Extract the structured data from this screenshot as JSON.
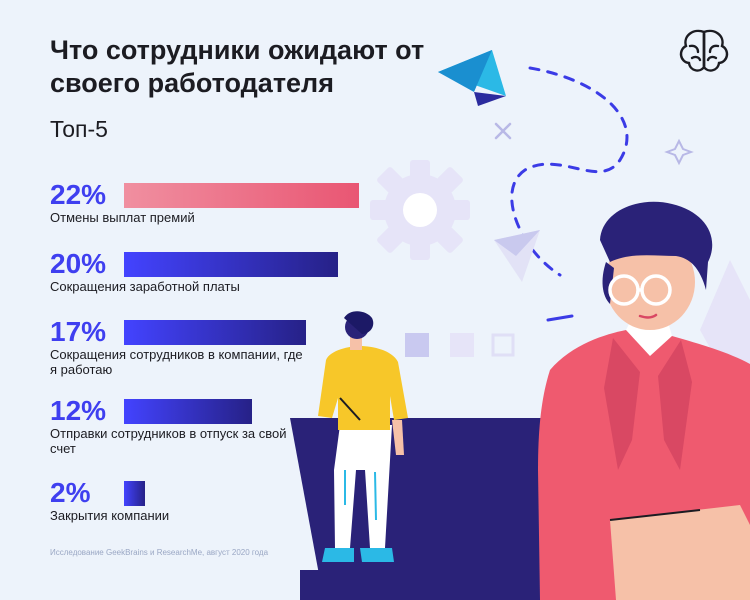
{
  "header": {
    "title": "Что сотрудники ожидают от своего работодателя",
    "subtitle": "Топ-5"
  },
  "footer": {
    "source": "Исследование GeekBrains и ResearchMe, август 2020 года"
  },
  "icons": {
    "logo": "brain-icon",
    "decor": [
      "paper-plane-icon",
      "gear-icon",
      "sparkle-icon",
      "triangle-icon"
    ]
  },
  "colors": {
    "accent": "#3f3ff0",
    "highlight_bar_start": "#f08fa0",
    "highlight_bar_end": "#e95673",
    "bar_start": "#4343ff",
    "bar_end": "#262187",
    "background": "#edf3fb"
  },
  "chart_data": {
    "type": "bar",
    "orientation": "horizontal",
    "title": "Что сотрудники ожидают от своего работодателя",
    "subtitle": "Топ-5",
    "categories": [
      "Отмены выплат премий",
      "Сокращения заработной платы",
      "Сокращения сотрудников в компании, где я работаю",
      "Отправки сотрудников в отпуск за свой счет",
      "Закрытия компании"
    ],
    "values": [
      22,
      20,
      17,
      12,
      2
    ],
    "value_labels": [
      "22%",
      "20%",
      "17%",
      "12%",
      "2%"
    ],
    "unit": "%",
    "grid": false,
    "legend": "none"
  }
}
